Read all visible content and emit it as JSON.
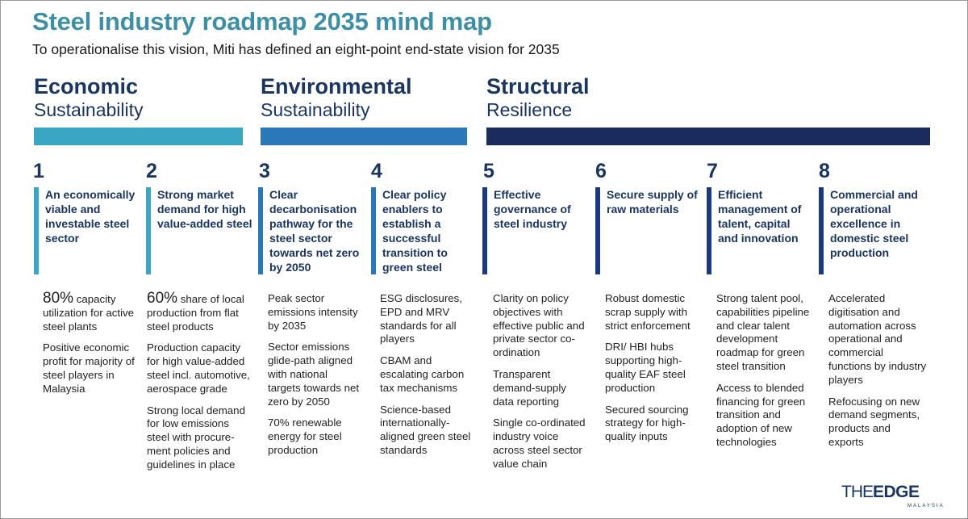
{
  "header": {
    "title": "Steel industry roadmap 2035 mind map",
    "subtitle": "To operationalise this vision, Miti has defined an eight-point end-state vision for 2035"
  },
  "groups": [
    {
      "title": "Economic",
      "sub": "Sustainability",
      "color": "#3aa6c4"
    },
    {
      "title": "Environmental",
      "sub": "Sustainability",
      "color": "#2a78b8"
    },
    {
      "title": "Structural",
      "sub": "Resilience",
      "color": "#1a2b5c"
    }
  ],
  "points": [
    {
      "num": "1",
      "heading": "An economically viable and investable steel sector",
      "details": [
        {
          "big": "80%",
          "text": " capacity utilization for active steel plants"
        },
        {
          "text": "Positive economic profit for majority of steel players in Malaysia"
        }
      ]
    },
    {
      "num": "2",
      "heading": "Strong market demand for high value-added steel",
      "details": [
        {
          "big": "60%",
          "text": " share of local production from flat steel products"
        },
        {
          "text": "Production capacity for high value-added steel incl. automotive, aerospace grade"
        },
        {
          "text": "Strong local demand for low emissions steel with procure-ment policies and guidelines in place"
        }
      ]
    },
    {
      "num": "3",
      "heading": "Clear decarbonisation pathway for the steel sector towards net zero by 2050",
      "details": [
        {
          "text": "Peak sector emissions intensity by 2035"
        },
        {
          "text": "Sector emissions glide-path aligned with national targets towards net zero by 2050"
        },
        {
          "text": "70% renewable energy for steel production"
        }
      ]
    },
    {
      "num": "4",
      "heading": "Clear policy enablers to establish a successful transition to green steel",
      "details": [
        {
          "text": "ESG disclosures, EPD and MRV standards for all players"
        },
        {
          "text": "CBAM and escalating carbon tax mechanisms"
        },
        {
          "text": "Science-based internationally-aligned green steel standards"
        }
      ]
    },
    {
      "num": "5",
      "heading": "Effective governance of steel industry",
      "details": [
        {
          "text": "Clarity on policy objectives with effective public and private sector co-ordination"
        },
        {
          "text": "Transparent demand-supply data reporting"
        },
        {
          "text": "Single co-ordinated industry voice across steel sector value chain"
        }
      ]
    },
    {
      "num": "6",
      "heading": "Secure supply of raw materials",
      "details": [
        {
          "text": "Robust domestic scrap supply with strict enforcement"
        },
        {
          "text": "DRI/ HBI hubs supporting high-quality EAF steel production"
        },
        {
          "text": "Secured sourcing strategy for high-quality inputs"
        }
      ]
    },
    {
      "num": "7",
      "heading": "Efficient management of talent, capital and innovation",
      "details": [
        {
          "text": "Strong talent pool, capabilities pipeline and clear talent development roadmap for green steel transition"
        },
        {
          "text": "Access to blended financing for green transition and adoption of new technologies"
        }
      ]
    },
    {
      "num": "8",
      "heading": "Commercial and operational excellence in domestic steel production",
      "details": [
        {
          "text": "Accelerated digitisation and automation across operational and commercial functions by industry players"
        },
        {
          "text": "Refocusing on new demand segments, products and exports"
        }
      ]
    }
  ],
  "logo": {
    "the": "THE",
    "edge": "EDGE",
    "country": "MALAYSIA"
  }
}
